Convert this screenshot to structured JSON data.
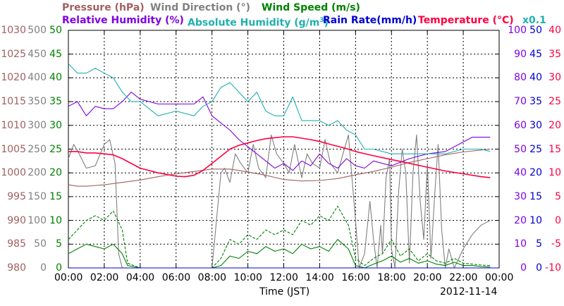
{
  "legend": {
    "pressure": "Pressure (hPa)",
    "wind_direction": "Wind Direction (°)",
    "wind_speed": "Wind Speed (m/s)",
    "relative_humidity": "Relative Humidity (%)",
    "absolute_humidity": "Absolute Humidity (g/m",
    "absolute_humidity_sup": "3",
    "absolute_humidity_end": ")",
    "rain_rate": "Rain Rate(mm/h)",
    "temperature": "Temperature (°C)",
    "scale_note": "x0.1"
  },
  "colors": {
    "pressure": "#a06060",
    "wind_direction": "#808080",
    "wind_speed": "#008000",
    "relative_humidity": "#8000e0",
    "absolute_humidity": "#20b0b0",
    "rain_rate": "#0000d0",
    "temperature": "#ff0040"
  },
  "chart_data": {
    "type": "line",
    "xlabel": "Time (JST)",
    "date": "2012-11-14",
    "x_ticks": [
      "00:00",
      "02:00",
      "04:00",
      "06:00",
      "08:00",
      "10:00",
      "12:00",
      "14:00",
      "16:00",
      "18:00",
      "20:00",
      "22:00",
      "00:00"
    ],
    "xlim": [
      0,
      24
    ],
    "axes": {
      "pressure": {
        "ticks": [
          "1030",
          "1025",
          "1020",
          "1015",
          "1010",
          "1005",
          "1000",
          "995",
          "990",
          "985",
          "980"
        ],
        "ylim": [
          980,
          1030
        ]
      },
      "wind_direction": {
        "ticks": [
          "500",
          "450",
          "400",
          "350",
          "300",
          "250",
          "200",
          "150",
          "100",
          "50",
          "0"
        ],
        "ylim": [
          0,
          500
        ]
      },
      "wind_speed": {
        "ticks": [
          "50",
          "45",
          "40",
          "35",
          "30",
          "25",
          "20",
          "15",
          "10",
          "5",
          "0"
        ],
        "ylim": [
          0,
          50
        ]
      },
      "relative_humidity": {
        "ticks": [
          "100",
          "90",
          "80",
          "70",
          "60",
          "50",
          "40",
          "30",
          "20",
          "10",
          "0"
        ],
        "ylim": [
          0,
          100
        ]
      },
      "rain_rate": {
        "ticks": [
          "50",
          "45",
          "40",
          "35",
          "30",
          "25",
          "20",
          "15",
          "10",
          "5",
          "0"
        ],
        "ylim": [
          0,
          50
        ]
      },
      "temperature": {
        "ticks": [
          "40",
          "35",
          "30",
          "25",
          "20",
          "15",
          "10",
          "5",
          "0",
          "-5",
          "-10"
        ],
        "ylim": [
          -10,
          40
        ]
      }
    },
    "series": [
      {
        "key": "pressure",
        "axis": "pressure",
        "style": "solid",
        "x": [
          0,
          0.5,
          1,
          2,
          3,
          4,
          5,
          6,
          7,
          8,
          9,
          10,
          11,
          12,
          13,
          14,
          15,
          16,
          17,
          18,
          19,
          20,
          21,
          22,
          23,
          23.5
        ],
        "y": [
          997.5,
          997.2,
          997.2,
          997.5,
          998,
          998.5,
          999.2,
          999.8,
          1000.3,
          1000.8,
          1000.8,
          1000.2,
          999.5,
          998.6,
          998.3,
          998.4,
          998.8,
          999.6,
          1000.3,
          1001.2,
          1002.2,
          1003.0,
          1003.8,
          1004.4,
          1004.8,
          1005
        ]
      },
      {
        "key": "wind_direction",
        "axis": "wind_direction",
        "style": "solid",
        "x": [
          0,
          0.3,
          0.6,
          1,
          1.5,
          2,
          2.3,
          2.6,
          2.8,
          3,
          3.5,
          4,
          6,
          8,
          8.5,
          8.7,
          9,
          9.3,
          9.6,
          10,
          10.3,
          10.6,
          11,
          11.3,
          11.6,
          12,
          12.3,
          12.6,
          13,
          13.3,
          13.6,
          14,
          14.3,
          14.6,
          15,
          15.3,
          15.6,
          16,
          16.2,
          16.5,
          16.8,
          17,
          17.2,
          17.4,
          17.5,
          17.7,
          17.9,
          18,
          18.2,
          18.4,
          18.6,
          18.8,
          19,
          19.2,
          19.4,
          19.6,
          19.8,
          20,
          20.2,
          20.4,
          20.6,
          20.8,
          21,
          21.2,
          21.5,
          22,
          22.5,
          23,
          23.5
        ],
        "y": [
          230,
          260,
          240,
          210,
          215,
          260,
          270,
          220,
          30,
          0,
          0,
          0,
          0,
          0,
          200,
          210,
          180,
          240,
          220,
          200,
          260,
          210,
          190,
          280,
          240,
          220,
          200,
          260,
          190,
          240,
          220,
          210,
          270,
          220,
          200,
          240,
          280,
          100,
          0,
          30,
          140,
          60,
          0,
          90,
          30,
          190,
          230,
          40,
          0,
          160,
          250,
          200,
          10,
          200,
          280,
          140,
          60,
          220,
          20,
          150,
          260,
          80,
          0,
          40,
          0,
          40,
          70,
          90,
          100
        ]
      },
      {
        "key": "wind_speed",
        "axis": "wind_speed",
        "style": "solid",
        "x": [
          0,
          0.5,
          1,
          1.5,
          2,
          2.5,
          3,
          3.3,
          4,
          6,
          8,
          8.5,
          9,
          9.5,
          10,
          10.5,
          11,
          11.5,
          12,
          12.5,
          13,
          13.5,
          14,
          14.5,
          15,
          15.3,
          15.6,
          16,
          16.5,
          17,
          17.5,
          18,
          18.5,
          19,
          19.5,
          20,
          20.5,
          21,
          21.5,
          22,
          22.5,
          23,
          23.5
        ],
        "y": [
          3,
          4,
          5,
          4.5,
          4,
          5,
          3,
          0.5,
          0,
          0,
          0,
          0.5,
          2.5,
          2,
          3.5,
          3,
          4.5,
          3.5,
          4,
          3,
          5,
          4,
          4.5,
          3.5,
          6,
          5,
          4,
          0.5,
          0,
          0.8,
          1.5,
          2.5,
          1.2,
          2,
          1,
          1.5,
          0.8,
          0.5,
          1.2,
          0.5,
          0.5,
          0.3,
          0.2
        ]
      },
      {
        "key": "wind_speed_gust",
        "axis": "wind_speed",
        "style": "dashed",
        "x": [
          0,
          0.5,
          1,
          1.5,
          2,
          2.5,
          3,
          3.3,
          4,
          6,
          8,
          8.5,
          9,
          9.5,
          10,
          10.5,
          11,
          11.5,
          12,
          12.5,
          13,
          13.5,
          14,
          14.5,
          15,
          15.3,
          15.6,
          16,
          16.5,
          17,
          17.5,
          18,
          18.5,
          19,
          19.5,
          20,
          20.5,
          21,
          21.5,
          22,
          22.5,
          23,
          23.5
        ],
        "y": [
          6,
          8,
          10,
          11,
          10,
          12,
          8,
          1,
          0,
          0,
          0,
          2,
          6,
          5,
          7,
          6,
          8,
          7,
          8,
          7,
          10,
          9,
          11,
          10,
          13,
          11,
          9,
          2,
          0.5,
          2,
          3,
          6,
          2.5,
          4,
          1.5,
          3,
          1.5,
          1,
          2,
          1,
          0.8,
          0.6,
          0.5
        ]
      },
      {
        "key": "relative_humidity",
        "axis": "relative_humidity",
        "style": "solid",
        "x": [
          0,
          0.5,
          1,
          1.5,
          2,
          2.5,
          3,
          3.5,
          4,
          5,
          6,
          7,
          7.5,
          8,
          8.5,
          9,
          9.5,
          10,
          10.5,
          11,
          11.5,
          12,
          12.5,
          13,
          13.5,
          14,
          14.5,
          15,
          15.5,
          16,
          16.5,
          17,
          18,
          19,
          20,
          21,
          22,
          22.5,
          23,
          23.5
        ],
        "y": [
          68,
          70,
          64,
          68,
          67,
          67,
          70,
          74,
          71,
          69,
          69,
          69,
          72,
          64,
          61,
          58,
          54,
          51,
          48,
          45,
          42,
          44,
          41,
          45,
          43,
          48,
          44,
          42,
          46,
          43,
          42,
          45,
          43,
          46,
          48,
          49,
          53,
          55,
          55,
          55
        ]
      },
      {
        "key": "absolute_humidity",
        "axis": "wind_speed",
        "style": "solid",
        "x": [
          0,
          0.5,
          1,
          1.5,
          2,
          2.5,
          3,
          3.5,
          4,
          5,
          6,
          7,
          7.5,
          8,
          8.5,
          9,
          9.5,
          10,
          10.5,
          11,
          11.5,
          12,
          12.5,
          13,
          13.5,
          14,
          14.5,
          15,
          15.5,
          16,
          16.5,
          17,
          18,
          19,
          20,
          21,
          22,
          22.5,
          23,
          23.5
        ],
        "y": [
          43,
          41,
          41,
          42,
          41,
          40,
          37,
          35,
          35,
          32,
          33,
          32,
          34,
          35,
          38,
          39,
          37,
          35,
          37,
          33,
          32,
          32,
          36,
          31,
          31,
          31,
          30,
          31,
          29,
          28,
          25,
          25,
          24,
          24,
          24,
          24,
          25,
          25,
          25,
          24.5
        ]
      },
      {
        "key": "rain_rate",
        "axis": "rain_rate",
        "style": "solid",
        "x": [
          0,
          24
        ],
        "y": [
          0,
          0
        ]
      },
      {
        "key": "temperature",
        "axis": "temperature",
        "style": "solid",
        "x": [
          0,
          0.5,
          1,
          1.5,
          2,
          2.5,
          3,
          4,
          5,
          6,
          6.5,
          7,
          7.5,
          8,
          8.5,
          9,
          9.5,
          10,
          10.5,
          11,
          11.5,
          12,
          12.5,
          13,
          13.5,
          14,
          14.5,
          15,
          15.5,
          16,
          17,
          18,
          19,
          20,
          21,
          22,
          23,
          23.5
        ],
        "y": [
          14.5,
          14.5,
          14.2,
          14.2,
          14,
          13.8,
          13,
          11,
          10,
          9.3,
          9.2,
          9.5,
          10.5,
          12,
          13.5,
          15,
          15.8,
          16.3,
          16.8,
          17.2,
          17.4,
          17.6,
          17.6,
          17.3,
          17,
          16.6,
          16.1,
          15.6,
          15.1,
          14.5,
          13.6,
          12.8,
          12,
          11.2,
          10.4,
          9.8,
          9.2,
          9
        ]
      }
    ]
  }
}
